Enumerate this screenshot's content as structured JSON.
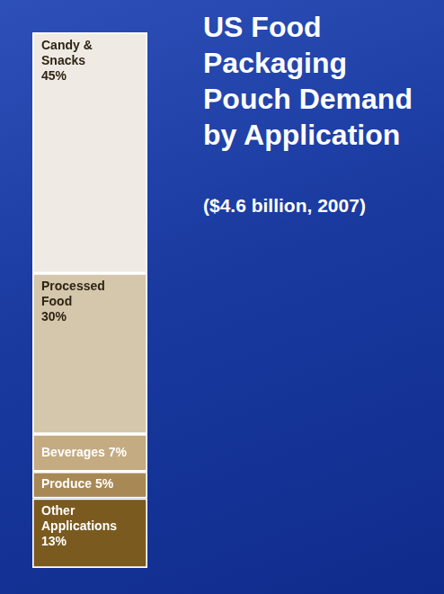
{
  "chart_data": {
    "type": "bar",
    "title": "US Food Packaging Pouch Demand by Application",
    "subtitle": "($4.6 billion, 2007)",
    "categories": [
      null
    ],
    "stacked": true,
    "data_labels": true,
    "tick_labels": false,
    "grid": false,
    "ylim": [
      0,
      100
    ],
    "series": [
      {
        "name": "Candy & Snacks",
        "color": "#efebe4",
        "values": [
          45
        ],
        "value_labels": [
          "45%"
        ]
      },
      {
        "name": "Processed Food",
        "color": "#d5c7ac",
        "values": [
          30
        ],
        "value_labels": [
          "30%"
        ]
      },
      {
        "name": "Beverages",
        "color": "#c4ab82",
        "values": [
          7
        ],
        "value_labels": [
          "7%"
        ]
      },
      {
        "name": "Produce",
        "color": "#a88955",
        "values": [
          5
        ],
        "value_labels": [
          "5%"
        ]
      },
      {
        "name": "Other Applications",
        "color": "#7b5a1f",
        "values": [
          13
        ],
        "value_labels": [
          "13%"
        ]
      }
    ]
  }
}
